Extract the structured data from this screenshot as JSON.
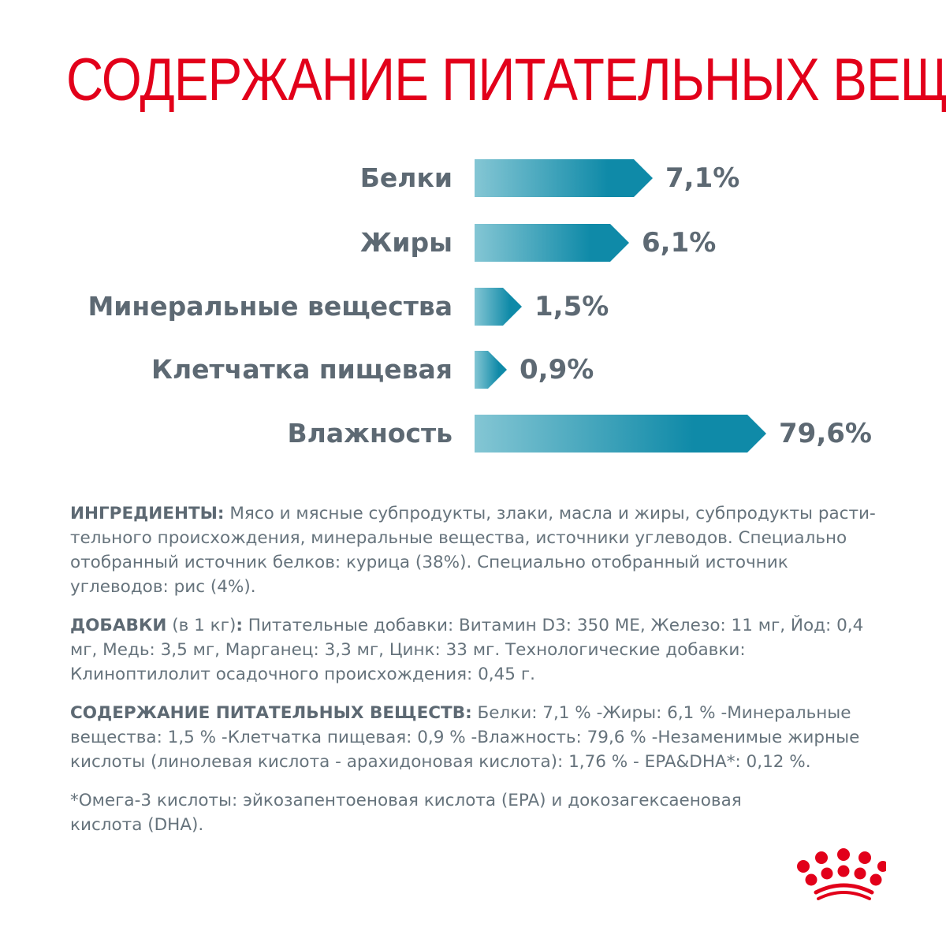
{
  "chart_data": {
    "type": "bar",
    "orientation": "horizontal",
    "title": "СОДЕРЖАНИЕ ПИТАТЕЛЬНЫХ ВЕЩЕСТВ",
    "categories": [
      "Белки",
      "Жиры",
      "Минеральные вещества",
      "Клетчатка пищевая",
      "Влажность"
    ],
    "values": [
      7.1,
      6.1,
      1.5,
      0.9,
      79.6
    ],
    "value_labels": [
      "7,1%",
      "6,1%",
      "1,5%",
      "0,9%",
      "79,6%"
    ],
    "unit": "%",
    "grid": false,
    "colors": {
      "bar_start": "#84c6d4",
      "bar_end": "#0f8aa8",
      "title": "#e2001a",
      "text": "#5d6973"
    }
  },
  "ingredients": {
    "label": "ИНГРЕДИЕНТЫ:",
    "text": " Мясо и мясные субпродукты, злаки, масла и жиры, субпродукты расти-тельного происхождения, минеральные вещества, источники углеводов. Специально отобранный источник белков: курица (38%). Специально отобранный источник углеводов: рис (4%)."
  },
  "additives": {
    "label": "ДОБАВКИ",
    "sub": " (в 1 кг)",
    "colon": ":",
    "text": " Питательные добавки: Витамин D3: 350 МЕ, Железо: 11 мг, Йод: 0,4 мг, Медь: 3,5 мг, Марганец: 3,3 мг, Цинк: 33 мг. Технологические добавки: Клиноптилолит осадочного происхождения: 0,45 г."
  },
  "nutrients": {
    "label": "СОДЕРЖАНИЕ ПИТАТЕЛЬНЫХ ВЕЩЕСТВ:",
    "text": " Белки: 7,1 % -Жиры: 6,1 % -Минеральные вещества: 1,5 % -Клетчатка пищевая: 0,9 % -Влажность: 79,6 % -Незаменимые жирные кислоты (линолевая кислота - арахидоновая кислота): 1,76 % - EPA&DHA*: 0,12 %."
  },
  "footnote": "*Омега-3 кислоты: эйкозапентоеновая кислота (EPA) и докозагексаеновая кислота (DHA).",
  "logo": {
    "name": "royal-canin-crown-logo",
    "color": "#e2001a"
  }
}
